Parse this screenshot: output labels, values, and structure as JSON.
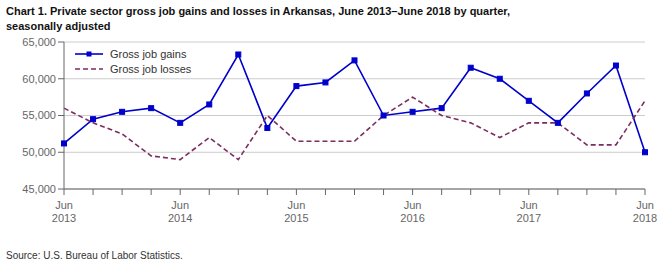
{
  "chart_data": {
    "type": "line",
    "title": "Chart 1. Private sector gross job gains and losses in Arkansas, June 2013–June 2018 by quarter,",
    "subtitle": "seasonally adjusted",
    "annotations": [
      "Source: U.S. Bureau of Labor Statistics."
    ],
    "categories": [
      "Jun\n2013",
      null,
      null,
      null,
      "Jun\n2014",
      null,
      null,
      null,
      "Jun\n2015",
      null,
      null,
      null,
      "Jun\n2016",
      null,
      null,
      null,
      "Jun\n2017",
      null,
      null,
      null,
      "Jun\n2018"
    ],
    "series": [
      {
        "name": "Gross job gains",
        "color": "#0000CC",
        "marker": "square",
        "line_style": "solid",
        "values": [
          51200,
          54500,
          55500,
          56000,
          54000,
          56500,
          63300,
          53300,
          59000,
          59500,
          62500,
          55000,
          55500,
          56000,
          61500,
          60000,
          57000,
          54000,
          58000,
          61800,
          50000
        ]
      },
      {
        "name": "Gross job losses",
        "color": "#7B2D5E",
        "marker": "none",
        "line_style": "dashed",
        "values": [
          56000,
          54000,
          52500,
          49500,
          49000,
          52000,
          49000,
          55000,
          51500,
          51500,
          51500,
          55000,
          57500,
          55000,
          54000,
          52000,
          54000,
          54000,
          51000,
          51000,
          57000
        ]
      }
    ],
    "ylim": [
      45000,
      65000
    ],
    "yticks": [
      {
        "value": 45000,
        "label": "45,000"
      },
      {
        "value": 50000,
        "label": "50,000"
      },
      {
        "value": 55000,
        "label": "55,000"
      },
      {
        "value": 60000,
        "label": "60,000"
      },
      {
        "value": 65000,
        "label": "65,000"
      }
    ],
    "grid": "y",
    "legend": "upper left"
  }
}
